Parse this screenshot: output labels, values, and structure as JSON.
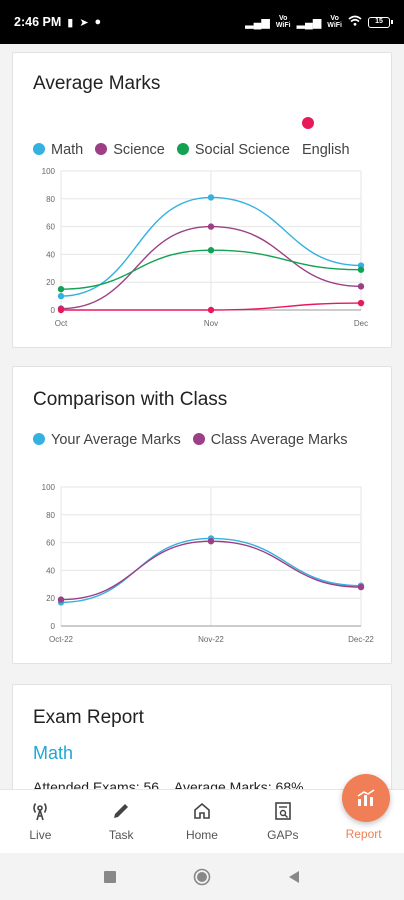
{
  "status_bar": {
    "time": "2:46 PM",
    "battery": "15",
    "vowifi_1": "Vo\nWiFi",
    "vowifi_2": "Vo\nWiFi"
  },
  "cards": {
    "average_marks": {
      "title": "Average Marks",
      "legend": [
        "Math",
        "Science",
        "Social Science",
        "English"
      ]
    },
    "comparison": {
      "title": "Comparison with Class",
      "legend": [
        "Your Average Marks",
        "Class Average Marks"
      ]
    },
    "exam_report": {
      "title": "Exam Report",
      "subject": "Math",
      "attended_label": "Attended Exams: 56",
      "average_label": "Average Marks: 68%"
    }
  },
  "chart_data": [
    {
      "type": "line",
      "title": "Average Marks",
      "categories": [
        "Oct",
        "Nov",
        "Dec"
      ],
      "ylim": [
        0,
        100
      ],
      "yticks": [
        "0",
        "20",
        "40",
        "60",
        "80",
        "100"
      ],
      "grid": true,
      "legend_position": "top",
      "series": [
        {
          "name": "Math",
          "color": "#35b1e0",
          "values": [
            10,
            81,
            32
          ]
        },
        {
          "name": "Science",
          "color": "#9c3f86",
          "values": [
            1,
            60,
            17
          ]
        },
        {
          "name": "Social Science",
          "color": "#13a153",
          "values": [
            15,
            43,
            29
          ]
        },
        {
          "name": "English",
          "color": "#e8195a",
          "values": [
            0,
            0,
            5
          ]
        }
      ]
    },
    {
      "type": "line",
      "title": "Comparison with Class",
      "categories": [
        "Oct-22",
        "Nov-22",
        "Dec-22"
      ],
      "ylim": [
        0,
        100
      ],
      "yticks": [
        "0",
        "20",
        "40",
        "60",
        "80",
        "100"
      ],
      "grid": true,
      "legend_position": "top",
      "series": [
        {
          "name": "Your Average Marks",
          "color": "#35b1e0",
          "values": [
            17,
            63,
            29
          ]
        },
        {
          "name": "Class Average Marks",
          "color": "#9c3f86",
          "values": [
            19,
            61,
            28
          ]
        }
      ]
    }
  ],
  "bottom_nav": {
    "items": [
      {
        "label": "Live"
      },
      {
        "label": "Task"
      },
      {
        "label": "Home"
      },
      {
        "label": "GAPs"
      },
      {
        "label": "Report"
      }
    ]
  },
  "colors": {
    "accent": "#f07f57",
    "subject_blue": "#1ea7d6"
  }
}
